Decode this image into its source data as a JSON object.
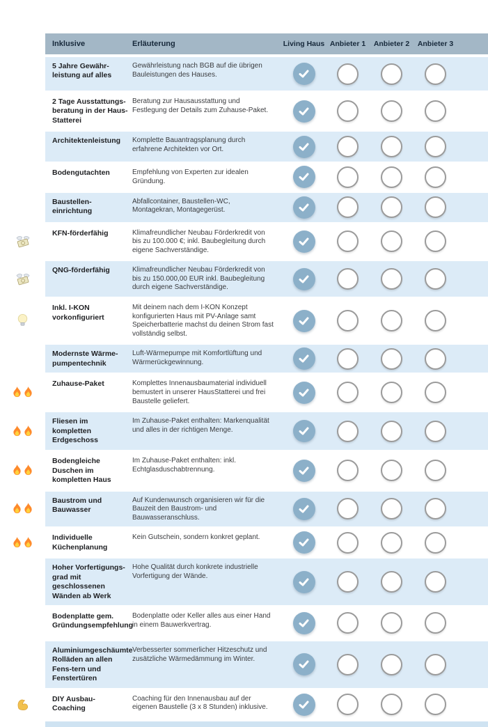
{
  "header": {
    "col_feature": "Inklusive",
    "col_description": "Erläuterung",
    "col_providers": [
      "Living Haus",
      "Anbieter 1",
      "Anbieter 2",
      "Anbieter 3"
    ]
  },
  "colors": {
    "header_bg": "#a3b7c6",
    "header_text": "#17293b",
    "shaded_row_bg": "#dcebf7",
    "check_circle_fill": "#8cb0c9",
    "empty_circle_border": "#9b9b9b"
  },
  "rows": [
    {
      "icon": null,
      "icon_count": 0,
      "name": "5 Jahre Gewähr-leistung auf alles",
      "description": "Gewährleistung nach BGB auf die übrigen Bauleistungen des Hauses.",
      "checks": [
        true,
        false,
        false,
        false
      ]
    },
    {
      "icon": null,
      "icon_count": 0,
      "name": "2 Tage Ausstattungs-beratung in der Haus-Statterei",
      "description": "Beratung zur Hausausstattung und Festlegung der Details zum Zuhause-Paket.",
      "checks": [
        true,
        false,
        false,
        false
      ]
    },
    {
      "icon": null,
      "icon_count": 0,
      "name": "Architektenleistung",
      "description": "Komplette Bauantragsplanung durch erfahrene Architekten vor Ort.",
      "checks": [
        true,
        false,
        false,
        false
      ]
    },
    {
      "icon": null,
      "icon_count": 0,
      "name": "Bodengutachten",
      "description": "Empfehlung von Experten zur idealen Gründung.",
      "checks": [
        true,
        false,
        false,
        false
      ]
    },
    {
      "icon": null,
      "icon_count": 0,
      "name": "Baustellen-einrichtung",
      "description": "Abfallcontainer, Baustellen-WC, Montagekran, Montagegerüst.",
      "checks": [
        true,
        false,
        false,
        false
      ]
    },
    {
      "icon": "money-with-wings",
      "icon_count": 1,
      "name": "KFN-förderfähig",
      "description": "Klimafreundlicher Neubau Förderkredit von bis zu 100.000 €; inkl. Baubegleitung durch eigene Sachverständige.",
      "checks": [
        true,
        false,
        false,
        false
      ]
    },
    {
      "icon": "money-with-wings",
      "icon_count": 1,
      "name": "QNG-förderfähig",
      "description": "Klimafreundlicher Neubau Förderkredit von bis zu 150.000,00 EUR inkl. Baubegleitung durch eigene Sachverständige.",
      "checks": [
        true,
        false,
        false,
        false
      ]
    },
    {
      "icon": "light-bulb",
      "icon_count": 1,
      "name": "Inkl. I-KON vorkonfiguriert",
      "description": "Mit deinem nach dem I-KON Konzept konfigurierten Haus mit PV-Anlage samt Speicherbatterie machst du deinen Strom fast vollständig selbst.",
      "checks": [
        true,
        false,
        false,
        false
      ]
    },
    {
      "icon": null,
      "icon_count": 0,
      "name": "Modernste Wärme-pumpentechnik",
      "description": "Luft-Wärmepumpe mit Komfortlüftung und Wärmerückgewinnung.",
      "checks": [
        true,
        false,
        false,
        false
      ]
    },
    {
      "icon": "fire",
      "icon_count": 2,
      "name": "Zuhause-Paket",
      "description": "Komplettes Innenausbaumaterial individuell bemustert in unserer HausStatterei und frei Baustelle geliefert.",
      "checks": [
        true,
        false,
        false,
        false
      ]
    },
    {
      "icon": "fire",
      "icon_count": 2,
      "name": "Fliesen im kompletten Erdgeschoss",
      "description": "Im Zuhause-Paket enthalten: Markenqualität und alles in der richtigen Menge.",
      "checks": [
        true,
        false,
        false,
        false
      ]
    },
    {
      "icon": "fire",
      "icon_count": 2,
      "name": "Bodengleiche Duschen im kompletten Haus",
      "description": "Im Zuhause-Paket enthalten: inkl. Echtglasduschabtrennung.",
      "checks": [
        true,
        false,
        false,
        false
      ]
    },
    {
      "icon": "fire",
      "icon_count": 2,
      "name": "Baustrom und Bauwasser",
      "description": "Auf Kundenwunsch organisieren wir für die Bauzeit den Baustrom- und Bauwasseranschluss.",
      "checks": [
        true,
        false,
        false,
        false
      ]
    },
    {
      "icon": "fire",
      "icon_count": 2,
      "name": "Individuelle Küchenplanung",
      "description": "Kein Gutschein, sondern konkret geplant.",
      "checks": [
        true,
        false,
        false,
        false
      ]
    },
    {
      "icon": null,
      "icon_count": 0,
      "name": "Hoher Vorfertigungs-grad mit geschlossenen Wänden ab Werk",
      "description": "Hohe Qualität durch konkrete industrielle Vorfertigung der Wände.",
      "checks": [
        true,
        false,
        false,
        false
      ]
    },
    {
      "icon": null,
      "icon_count": 0,
      "name": "Bodenplatte gem. Gründungsempfehlung",
      "description": "Bodenplatte oder Keller alles aus einer Hand in einem Bauwerkvertrag.",
      "checks": [
        true,
        false,
        false,
        false
      ]
    },
    {
      "icon": null,
      "icon_count": 0,
      "name": "Aluminiumgeschäumte Rolläden an allen Fens-tern und Fenstertüren",
      "description": "Verbesserter sommerlicher Hitzeschutz und zusätzliche Wärmedämmung im Winter.",
      "checks": [
        true,
        false,
        false,
        false
      ]
    },
    {
      "icon": "flexed-biceps",
      "icon_count": 1,
      "name": "DIY Ausbau-Coaching",
      "description": "Coaching für den Innenausbau auf der eigenen Baustelle (3 x 8 Stunden) inklusive.",
      "checks": [
        true,
        false,
        false,
        false
      ]
    }
  ]
}
